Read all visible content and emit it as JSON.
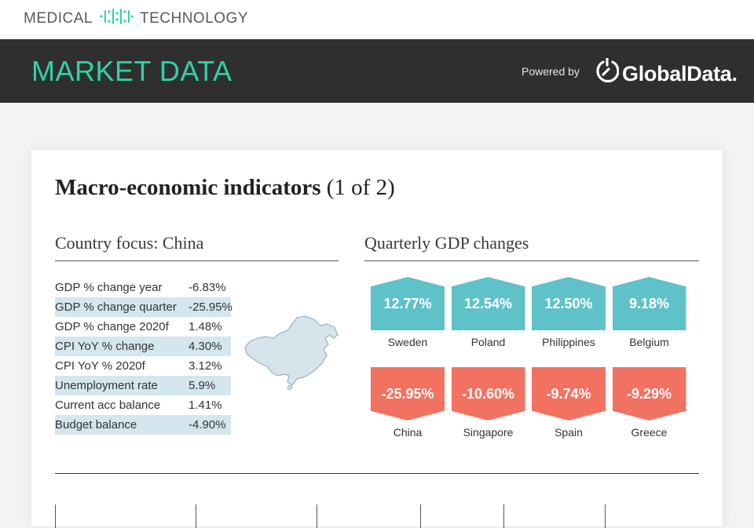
{
  "header": {
    "logo_left": "MEDICAL",
    "logo_right": "TECHNOLOGY",
    "banner_title": "MARKET DATA",
    "powered_by": "Powered by",
    "brand": "GlobalData.",
    "accent_color": "#2ed3a6"
  },
  "card": {
    "title_bold": "Macro-economic indicators",
    "title_suffix": "(1 of 2)",
    "country_heading": "Country focus: China",
    "gdp_heading": "Quarterly GDP changes",
    "indicators": [
      {
        "name": "GDP % change year",
        "value": "-6.83%",
        "shaded": false
      },
      {
        "name": "GDP % change quarter",
        "value": "-25.95%",
        "shaded": true
      },
      {
        "name": "GDP % change 2020f",
        "value": "1.48%",
        "shaded": false
      },
      {
        "name": "CPI YoY % change",
        "value": "4.30%",
        "shaded": true
      },
      {
        "name": "CPI YoY % 2020f",
        "value": "3.12%",
        "shaded": false
      },
      {
        "name": "Unemployment rate",
        "value": "5.9%",
        "shaded": true
      },
      {
        "name": "Current acc balance",
        "value": "1.41%",
        "shaded": false
      },
      {
        "name": "Budget balance",
        "value": "-4.90%",
        "shaded": true
      }
    ],
    "gdp_top": [
      {
        "value": "12.77%",
        "country": "Sweden"
      },
      {
        "value": "12.54%",
        "country": "Poland"
      },
      {
        "value": "12.50%",
        "country": "Philippines"
      },
      {
        "value": "9.18%",
        "country": "Belgium"
      }
    ],
    "gdp_bottom": [
      {
        "value": "-25.95%",
        "country": "China"
      },
      {
        "value": "-10.60%",
        "country": "Singapore"
      },
      {
        "value": "-9.74%",
        "country": "Spain"
      },
      {
        "value": "-9.29%",
        "country": "Greece"
      }
    ],
    "colors": {
      "positive": "#5fc2c9",
      "negative": "#f27262",
      "shade": "#d4e6ee"
    }
  }
}
